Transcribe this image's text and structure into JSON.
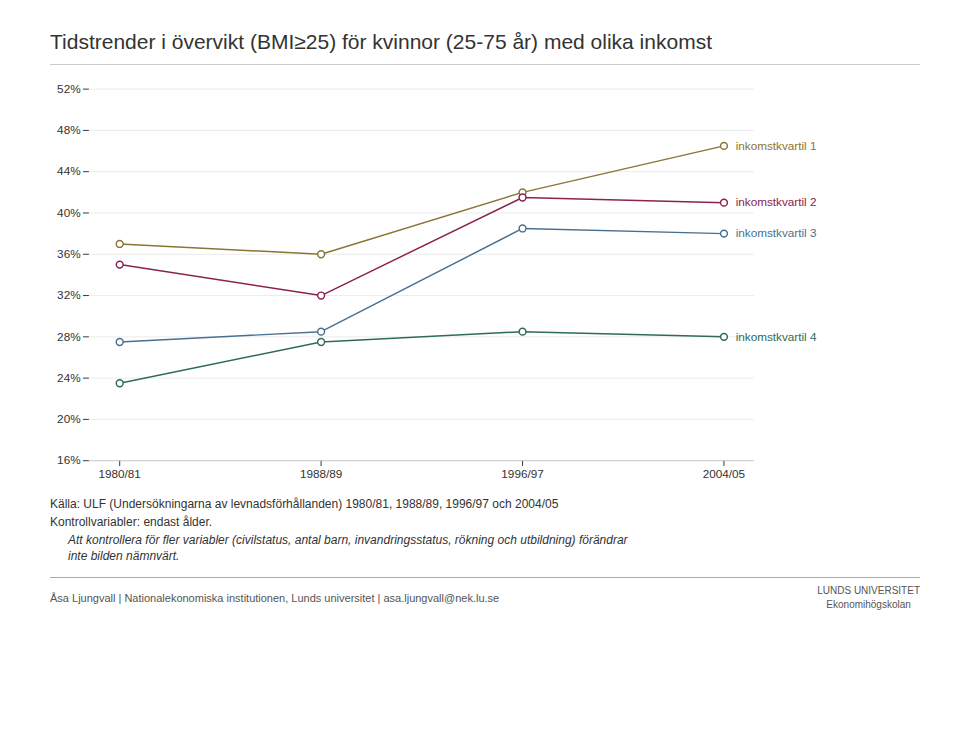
{
  "chart_data": {
    "type": "line",
    "title": "Tidstrender i övervikt (BMI≥25) för kvinnor (25-75 år) med olika inkomst",
    "categories": [
      "1980/81",
      "1988/89",
      "1996/97",
      "2004/05"
    ],
    "series": [
      {
        "name": "inkomstkvartil 1",
        "values": [
          37.0,
          36.0,
          42.0,
          46.5
        ],
        "color": "#8B7536",
        "marker": "o"
      },
      {
        "name": "inkomstkvartil 2",
        "values": [
          35.0,
          32.0,
          41.5,
          41.0
        ],
        "color": "#8B2252",
        "marker": "o"
      },
      {
        "name": "inkomstkvartil 3",
        "values": [
          27.5,
          28.5,
          38.5,
          38.0
        ],
        "color": "#4A7090",
        "marker": "o"
      },
      {
        "name": "inkomstkvartil 4",
        "values": [
          23.5,
          27.5,
          28.5,
          28.0
        ],
        "color": "#2E6B5E",
        "marker": "o"
      }
    ],
    "ylim": [
      16,
      52
    ],
    "yticks": [
      {
        "value": 16,
        "label": "16%"
      },
      {
        "value": 20,
        "label": "20%"
      },
      {
        "value": 24,
        "label": "24%"
      },
      {
        "value": 28,
        "label": "28%"
      },
      {
        "value": 32,
        "label": "32%"
      },
      {
        "value": 36,
        "label": "36%"
      },
      {
        "value": 40,
        "label": "40%"
      },
      {
        "value": 44,
        "label": "44%"
      },
      {
        "value": 48,
        "label": "48%"
      },
      {
        "value": 52,
        "label": "52%"
      }
    ],
    "grid": true,
    "legend": "right",
    "annotations": [
      "Källa: ULF (Undersökningarna av levnadsförhållanden) 1980/81, 1988/89, 1996/97 och 2004/05",
      "Kontrollvariabler: endast ålder.",
      "Att kontrollera för fler variabler (civilstatus, antal barn, invandringsstatus, rökning och utbildning) förändrar",
      "inte bilden nämnvärt.",
      "Åsa Ljungvall  |  Nationalekonomiska institutionen, Lunds universitet  |  asa.ljungvall@nek.lu.se",
      "LUNDS UNIVERSITET",
      "Ekonomihögskolan"
    ]
  }
}
